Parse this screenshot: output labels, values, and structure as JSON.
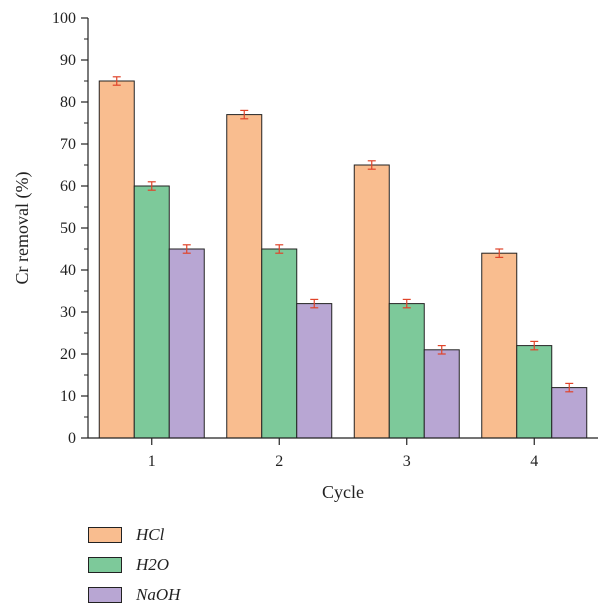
{
  "chart_data": {
    "type": "bar",
    "xlabel": "Cycle",
    "ylabel": "Cr removal (%)",
    "categories": [
      "1",
      "2",
      "3",
      "4"
    ],
    "ylim": [
      0,
      100
    ],
    "yticks": [
      0,
      10,
      20,
      30,
      40,
      50,
      60,
      70,
      80,
      90,
      100
    ],
    "grid": false,
    "legend_position": "bottom-left",
    "series": [
      {
        "name": "HCl",
        "color": "#f9bd8f",
        "values": [
          85,
          77,
          65,
          44
        ],
        "errors": [
          1,
          1,
          1,
          1
        ]
      },
      {
        "name": "H2O",
        "color": "#7dc99a",
        "values": [
          60,
          45,
          32,
          22
        ],
        "errors": [
          1,
          1,
          1,
          1
        ]
      },
      {
        "name": "NaOH",
        "color": "#b8a6d3",
        "values": [
          45,
          32,
          21,
          12
        ],
        "errors": [
          1,
          1,
          1,
          1
        ]
      }
    ],
    "error_bar_color": "#e0442a"
  }
}
